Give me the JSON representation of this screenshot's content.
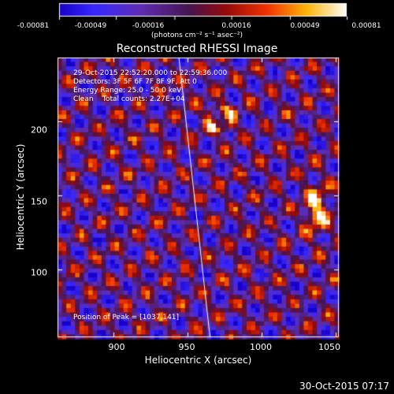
{
  "chart_data": {
    "type": "heatmap",
    "title": "Reconstructed RHESSI Image",
    "xlabel": "Heliocentric X (arcsec)",
    "ylabel": "Heliocentric Y (arcsec)",
    "xlim": [
      862,
      1052
    ],
    "ylim": [
      54,
      243
    ],
    "x_ticks": [
      "900",
      "950",
      "1000",
      "1050"
    ],
    "x_tick_values": [
      900,
      950,
      1000,
      1050
    ],
    "y_ticks": [
      "100",
      "150",
      "200"
    ],
    "y_tick_values": [
      100,
      150,
      200
    ],
    "colorbar": {
      "ticks": [
        "-0.00081",
        "-0.00049",
        "-0.00016",
        "0.00016",
        "0.00049",
        "0.00081"
      ],
      "tick_values": [
        -0.00081,
        -0.00049,
        -0.00016,
        0.00016,
        0.00049,
        0.00081
      ],
      "unit": "(photons cm⁻² s⁻¹ asec⁻²)",
      "range": [
        -0.00081,
        0.00081
      ]
    },
    "annotations": [
      "29-Oct-2015 22:52:20.000 to 22:59:36.000",
      "Detectors: 3F 5F 6F 7F 8F 9F, Att 0",
      "Energy Range: 25.0 - 50.0 keV",
      "Clean    Total counts: 2.27E+04"
    ],
    "peak_label": "Position of Peak = [1037,141]",
    "peak": {
      "x": 1037,
      "y": 141
    },
    "limb_line": [
      [
        944,
        243
      ],
      [
        965,
        54
      ]
    ],
    "colors": {
      "background": "#000000",
      "text": "#ffffff",
      "limb": "#ffffff"
    }
  },
  "footer": {
    "timestamp": "30-Oct-2015 07:17"
  }
}
